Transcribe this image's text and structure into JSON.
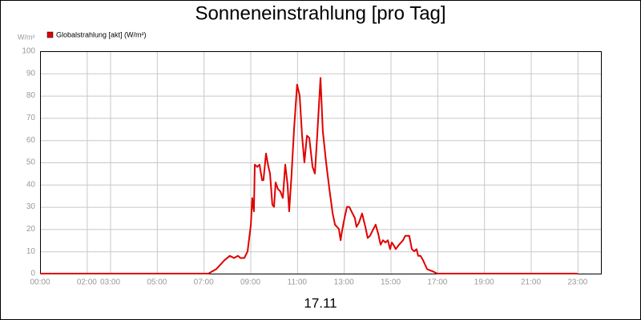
{
  "chart_data": {
    "type": "line",
    "title": "Sonneneinstrahlung [pro Tag]",
    "y_unit": "W/m²",
    "x_label": "17.11",
    "xlim": [
      0,
      24
    ],
    "ylim": [
      0,
      100
    ],
    "yticks": [
      0,
      10,
      20,
      30,
      40,
      50,
      60,
      70,
      80,
      90,
      100
    ],
    "xticks": [
      {
        "value": 0,
        "label": "00:00"
      },
      {
        "value": 2,
        "label": "02:00"
      },
      {
        "value": 3,
        "label": "03:00"
      },
      {
        "value": 5,
        "label": "05:00"
      },
      {
        "value": 7,
        "label": "07:00"
      },
      {
        "value": 9,
        "label": "09:00"
      },
      {
        "value": 11,
        "label": "11:00"
      },
      {
        "value": 13,
        "label": "13:00"
      },
      {
        "value": 15,
        "label": "15:00"
      },
      {
        "value": 17,
        "label": "17:00"
      },
      {
        "value": 19,
        "label": "19:00"
      },
      {
        "value": 21,
        "label": "21:00"
      },
      {
        "value": 23,
        "label": "23:00"
      }
    ],
    "grid": true,
    "legend": "top-left",
    "series": [
      {
        "name": "Globalstrahlung [akt] (W/m²)",
        "color": "#e00000",
        "x": [
          0,
          7.2,
          7.54,
          7.89,
          8.12,
          8.3,
          8.47,
          8.57,
          8.74,
          8.88,
          9.02,
          9.08,
          9.15,
          9.19,
          9.29,
          9.39,
          9.5,
          9.56,
          9.67,
          9.77,
          9.84,
          9.94,
          10.01,
          10.08,
          10.18,
          10.28,
          10.39,
          10.49,
          10.59,
          10.66,
          10.76,
          10.87,
          11.0,
          11.11,
          11.21,
          11.31,
          11.42,
          11.52,
          11.66,
          11.76,
          11.86,
          12.0,
          12.1,
          12.24,
          12.38,
          12.52,
          12.62,
          12.79,
          12.86,
          12.92,
          13.03,
          13.13,
          13.23,
          13.37,
          13.47,
          13.54,
          13.65,
          13.78,
          13.92,
          14.02,
          14.12,
          14.26,
          14.36,
          14.47,
          14.57,
          14.67,
          14.78,
          14.88,
          14.98,
          15.05,
          15.12,
          15.22,
          15.36,
          15.53,
          15.63,
          15.8,
          15.91,
          16.01,
          16.11,
          16.18,
          16.28,
          16.39,
          16.56,
          16.8,
          17.0,
          23.0
        ],
        "values": [
          0,
          0,
          2,
          6,
          8,
          7,
          8,
          7,
          7,
          10,
          22,
          34,
          28,
          49,
          48,
          49,
          42,
          42,
          54,
          48,
          45,
          31,
          30,
          41,
          38,
          37,
          34,
          49,
          40,
          28,
          44,
          65,
          85,
          80,
          62,
          50,
          62,
          61,
          48,
          45,
          62,
          88,
          64,
          50,
          38,
          27,
          22,
          20,
          15,
          19,
          25,
          30,
          30,
          27,
          25,
          21,
          23,
          27,
          21,
          16,
          17,
          20,
          22,
          18,
          13,
          15,
          14,
          15,
          11,
          14,
          13,
          11,
          13,
          15,
          17,
          17,
          11,
          10,
          11,
          8,
          8,
          6,
          2,
          1,
          0,
          0
        ]
      }
    ]
  }
}
